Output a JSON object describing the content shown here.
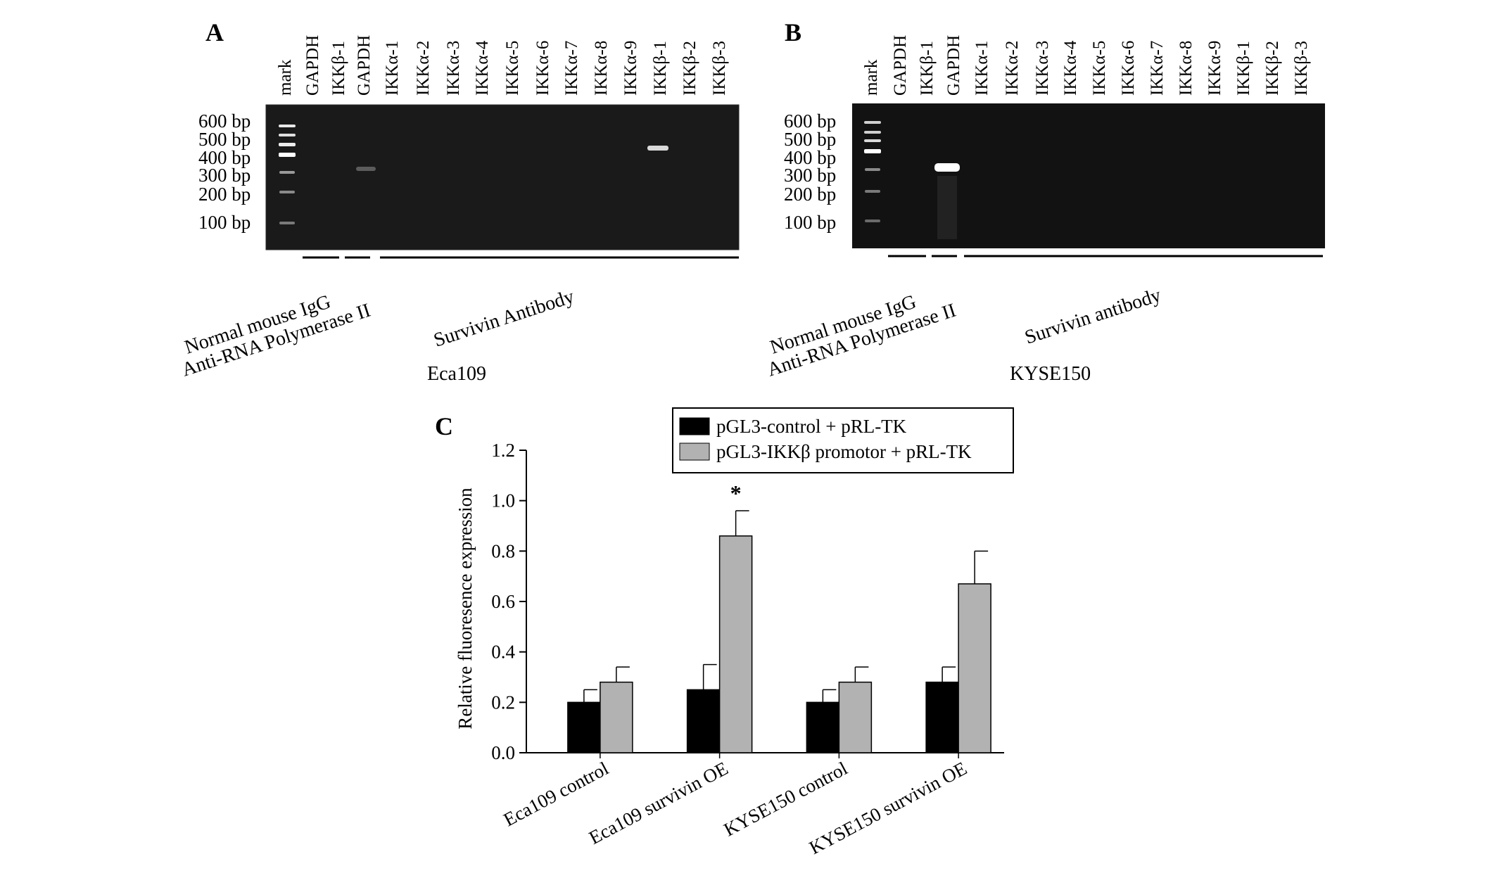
{
  "gels": [
    {
      "letter": "A",
      "lanes": [
        "mark",
        "GAPDH",
        "IKKβ-1",
        "GAPDH",
        "IKKα-1",
        "IKKα-2",
        "IKKα-3",
        "IKKα-4",
        "IKKα-5",
        "IKKα-6",
        "IKKα-7",
        "IKKα-8",
        "IKKα-9",
        "IKKβ-1",
        "IKKβ-2",
        "IKKβ-3"
      ],
      "markers": [
        "600 bp",
        "500 bp",
        "400 bp",
        "300 bp",
        "200 bp",
        "100 bp"
      ],
      "group_labels": [
        "Normal mouse IgG",
        "Anti-RNA Polymerase II",
        "Survivin Antibody"
      ],
      "cell_line": "Eca109"
    },
    {
      "letter": "B",
      "lanes": [
        "mark",
        "GAPDH",
        "IKKβ-1",
        "GAPDH",
        "IKKα-1",
        "IKKα-2",
        "IKKα-3",
        "IKKα-4",
        "IKKα-5",
        "IKKα-6",
        "IKKα-7",
        "IKKα-8",
        "IKKα-9",
        "IKKβ-1",
        "IKKβ-2",
        "IKKβ-3"
      ],
      "markers": [
        "600 bp",
        "500 bp",
        "400 bp",
        "300 bp",
        "200 bp",
        "100 bp"
      ],
      "group_labels": [
        "Normal mouse IgG",
        "Anti-RNA Polymerase II",
        "Survivin antibody"
      ],
      "cell_line": "KYSE150"
    }
  ],
  "chart_data": {
    "letter": "C",
    "type": "bar",
    "categories": [
      "Eca109 control",
      "Eca109 survivin OE",
      "KYSE150 control",
      "KYSE150 survivin OE"
    ],
    "series": [
      {
        "name": "pGL3-control + pRL-TK",
        "values": [
          0.2,
          0.25,
          0.2,
          0.28
        ],
        "errors": [
          0.05,
          0.1,
          0.05,
          0.06
        ],
        "color": "#000000"
      },
      {
        "name": "pGL3-IKKβ promotor + pRL-TK",
        "values": [
          0.28,
          0.86,
          0.28,
          0.67
        ],
        "errors": [
          0.06,
          0.1,
          0.06,
          0.13
        ],
        "color": "#b2b2b2"
      }
    ],
    "ylabel": "Relative fluoresence expression",
    "ylim": [
      0,
      1.2
    ],
    "yticks": [
      "0.0",
      "0.2",
      "0.4",
      "0.6",
      "0.8",
      "1.0",
      "1.2"
    ],
    "significance": [
      {
        "category_index": 1,
        "series_index": 1,
        "label": "*"
      }
    ],
    "legend_position": "top-right",
    "grid": false
  }
}
